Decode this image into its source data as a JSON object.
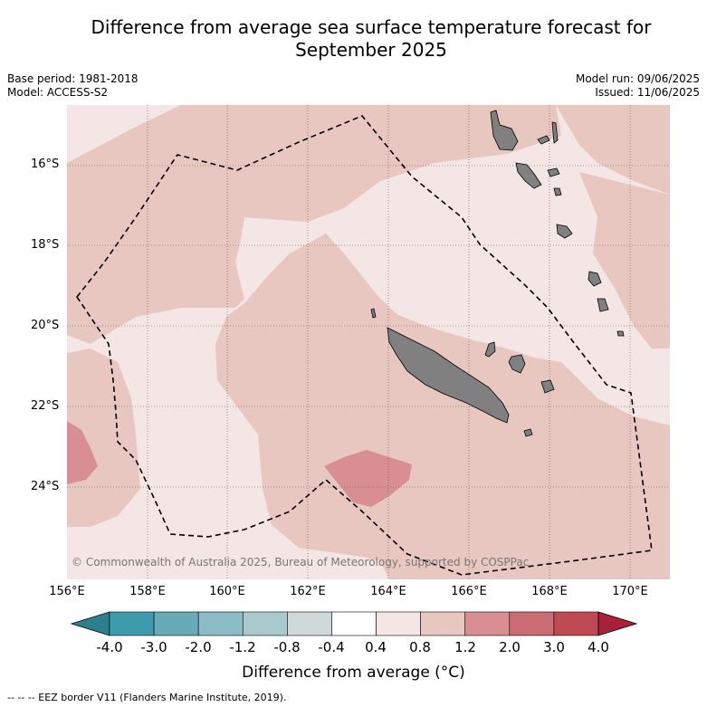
{
  "title_line1": "Difference from average sea surface temperature forecast for",
  "title_line2": "September 2025",
  "meta": {
    "base_period": "Base period: 1981-2018",
    "model": "Model: ACCESS-S2",
    "model_run": "Model run: 09/06/2025",
    "issued": "Issued: 11/06/2025"
  },
  "latitude_labels": [
    "16°S",
    "18°S",
    "20°S",
    "22°S",
    "24°S"
  ],
  "longitude_labels": [
    "156°E",
    "158°E",
    "160°E",
    "162°E",
    "164°E",
    "166°E",
    "168°E",
    "170°E"
  ],
  "copyright": "© Commonwealth of Australia 2025, Bureau of Meteorology, supported by COSPPac",
  "colorbar": {
    "ticks": [
      "-4.0",
      "-3.0",
      "-2.0",
      "-1.2",
      "-0.8",
      "-0.4",
      "0.4",
      "0.8",
      "1.2",
      "2.0",
      "3.0",
      "4.0"
    ],
    "colors": [
      "#3e9cac",
      "#67abb9",
      "#8cbcc5",
      "#a9cacc",
      "#cfd9da",
      "#ffffff",
      "#f4e6e4",
      "#e8c7c1",
      "#d98e94",
      "#cb6c73",
      "#be4a54"
    ],
    "under_color": "#2e7f8e",
    "over_color": "#a8203a",
    "label": "Difference from average (°C)"
  },
  "legend_note": "-- -- -- EEZ border V11 (Flanders Marine Institute, 2019)."
}
